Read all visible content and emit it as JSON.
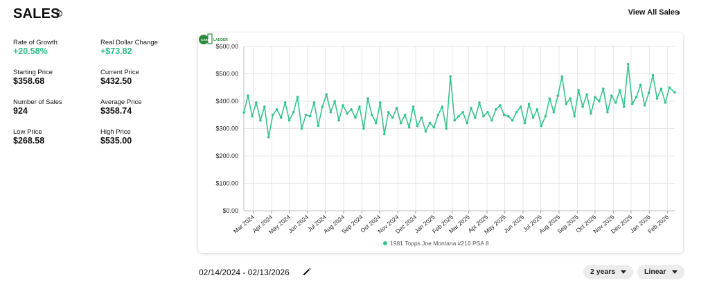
{
  "header": {
    "title": "SALES",
    "info_icon": "info-icon",
    "view_all_label": "View All Sales",
    "view_all_icon": "chevron-right-icon"
  },
  "stats": {
    "rate_of_growth": {
      "label": "Rate of Growth",
      "value": "+20.58%"
    },
    "real_dollar_change": {
      "label": "Real Dollar Change",
      "value": "+$73.82"
    },
    "starting_price": {
      "label": "Starting Price",
      "value": "$358.68"
    },
    "current_price": {
      "label": "Current Price",
      "value": "$432.50"
    },
    "number_of_sales": {
      "label": "Number of Sales",
      "value": "924"
    },
    "average_price": {
      "label": "Average Price",
      "value": "$358.74"
    },
    "low_price": {
      "label": "Low Price",
      "value": "$268.58"
    },
    "high_price": {
      "label": "High Price",
      "value": "$535.00"
    }
  },
  "colors": {
    "accent": "#2bbd85",
    "line": "#35c48e",
    "grid": "#e6e6e6",
    "logo_green": "#2e8b3e"
  },
  "logo": {
    "text_top": "CARD",
    "text_bottom": "LADDER",
    "icon": "card-ladder-logo"
  },
  "date_range": {
    "text": "02/14/2024 - 02/13/2026",
    "edit_icon": "pencil-icon"
  },
  "controls": {
    "period_label": "2 years",
    "scale_label": "Linear"
  },
  "chart_data": {
    "type": "line",
    "title": "",
    "xlabel": "",
    "ylabel": "",
    "ylim": [
      0,
      600
    ],
    "y_ticks": [
      "$0.00",
      "$100.00",
      "$200.00",
      "$300.00",
      "$400.00",
      "$500.00",
      "$600.00"
    ],
    "y_tick_values": [
      0,
      100,
      200,
      300,
      400,
      500,
      600
    ],
    "x_ticks": [
      "Mar 2024",
      "Apr 2024",
      "May 2024",
      "Jun 2024",
      "Jul 2024",
      "Aug 2024",
      "Sep 2024",
      "Oct 2024",
      "Nov 2024",
      "Dec 2024",
      "Jan 2025",
      "Feb 2025",
      "Mar 2025",
      "Apr 2025",
      "May 2025",
      "Jun 2025",
      "Jul 2025",
      "Aug 2025",
      "Sep 2025",
      "Oct 2025",
      "Nov 2025",
      "Dec 2025",
      "Jan 2026",
      "Feb 2026"
    ],
    "grid": true,
    "legend_position": "bottom",
    "series": [
      {
        "name": "1981 Topps Joe Montana #216 PSA 8",
        "x": [
          "2024-02-14",
          "2024-02-21",
          "2024-02-28",
          "2024-03-06",
          "2024-03-13",
          "2024-03-20",
          "2024-03-27",
          "2024-04-03",
          "2024-04-10",
          "2024-04-17",
          "2024-04-24",
          "2024-05-01",
          "2024-05-08",
          "2024-05-15",
          "2024-05-22",
          "2024-05-29",
          "2024-06-05",
          "2024-06-12",
          "2024-06-19",
          "2024-06-26",
          "2024-07-03",
          "2024-07-10",
          "2024-07-17",
          "2024-07-24",
          "2024-07-31",
          "2024-08-07",
          "2024-08-14",
          "2024-08-21",
          "2024-08-28",
          "2024-09-04",
          "2024-09-11",
          "2024-09-18",
          "2024-09-25",
          "2024-10-02",
          "2024-10-09",
          "2024-10-16",
          "2024-10-23",
          "2024-10-30",
          "2024-11-06",
          "2024-11-13",
          "2024-11-20",
          "2024-11-27",
          "2024-12-04",
          "2024-12-11",
          "2024-12-18",
          "2024-12-25",
          "2025-01-01",
          "2025-01-08",
          "2025-01-15",
          "2025-01-22",
          "2025-01-29",
          "2025-02-05",
          "2025-02-12",
          "2025-02-19",
          "2025-02-26",
          "2025-03-05",
          "2025-03-12",
          "2025-03-19",
          "2025-03-26",
          "2025-04-02",
          "2025-04-09",
          "2025-04-16",
          "2025-04-23",
          "2025-04-30",
          "2025-05-07",
          "2025-05-14",
          "2025-05-21",
          "2025-05-28",
          "2025-06-04",
          "2025-06-11",
          "2025-06-18",
          "2025-06-25",
          "2025-07-02",
          "2025-07-09",
          "2025-07-16",
          "2025-07-23",
          "2025-07-30",
          "2025-08-06",
          "2025-08-13",
          "2025-08-20",
          "2025-08-27",
          "2025-09-03",
          "2025-09-10",
          "2025-09-17",
          "2025-09-24",
          "2025-10-01",
          "2025-10-08",
          "2025-10-15",
          "2025-10-22",
          "2025-10-29",
          "2025-11-05",
          "2025-11-12",
          "2025-11-19",
          "2025-11-26",
          "2025-12-03",
          "2025-12-10",
          "2025-12-17",
          "2025-12-24",
          "2025-12-31",
          "2026-01-07",
          "2026-01-14",
          "2026-01-21",
          "2026-01-28",
          "2026-02-04",
          "2026-02-13"
        ],
        "values": [
          358.68,
          420,
          345,
          395,
          330,
          380,
          268.58,
          350,
          370,
          340,
          395,
          330,
          360,
          415,
          300,
          350,
          345,
          395,
          310,
          380,
          425,
          360,
          400,
          330,
          385,
          355,
          370,
          340,
          380,
          300,
          410,
          350,
          320,
          395,
          280,
          360,
          340,
          375,
          320,
          350,
          305,
          380,
          310,
          340,
          290,
          320,
          305,
          350,
          380,
          300,
          490,
          330,
          345,
          360,
          320,
          375,
          340,
          395,
          345,
          360,
          330,
          370,
          385,
          350,
          345,
          330,
          360,
          380,
          320,
          390,
          340,
          370,
          310,
          345,
          410,
          360,
          420,
          490,
          390,
          410,
          345,
          440,
          380,
          425,
          355,
          415,
          400,
          445,
          360,
          420,
          395,
          440,
          380,
          535,
          390,
          415,
          460,
          385,
          430,
          495,
          410,
          445,
          395,
          450,
          432.5
        ]
      }
    ]
  }
}
